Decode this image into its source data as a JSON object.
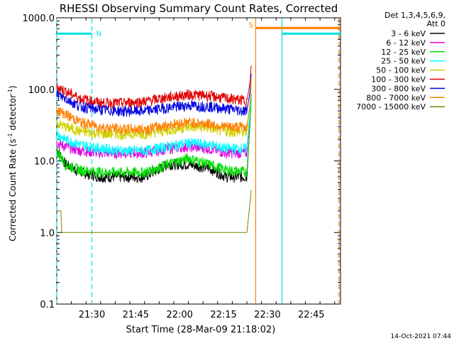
{
  "chart_data": {
    "type": "line",
    "title": "RHESSI Observing Summary Count Rates, Corrected",
    "xlabel": "Start Time (28-Mar-09 21:18:02)",
    "ylabel_main": "Corrected Count Rate (s",
    "ylabel_sup1": "-1",
    "ylabel_mid": " detector",
    "ylabel_sup2": "-1",
    "ylabel_end": ")",
    "yscale": "log",
    "ylim": [
      0.1,
      1000
    ],
    "y_ticks": [
      "0.1",
      "1.0",
      "10.0",
      "100.0",
      "1000.0"
    ],
    "xlim_minutes": [
      0,
      97
    ],
    "x_ticks": [
      {
        "minute": 12,
        "label": "21:30"
      },
      {
        "minute": 27,
        "label": "21:45"
      },
      {
        "minute": 42,
        "label": "22:00"
      },
      {
        "minute": 57,
        "label": "22:15"
      },
      {
        "minute": 72,
        "label": "22:30"
      },
      {
        "minute": 87,
        "label": "22:45"
      }
    ],
    "legend_header": [
      "Det 1,3,4,5,6,9,",
      "Att 0"
    ],
    "legend_placement": "right",
    "grid": false,
    "footer": "14-Oct-2021 07:44",
    "series": [
      {
        "name": "3 - 6 keV",
        "color": "#000000",
        "x": [
          0,
          3,
          8,
          15,
          22,
          30,
          38,
          45,
          52,
          58,
          65,
          66,
          66.5
        ],
        "y": [
          15,
          9,
          7,
          6,
          6,
          6,
          9,
          9,
          8,
          6,
          6,
          30,
          80
        ]
      },
      {
        "name": "6 - 12 keV",
        "color": "#e000e0",
        "x": [
          0,
          3,
          8,
          15,
          22,
          30,
          38,
          45,
          52,
          58,
          65,
          66,
          66.5
        ],
        "y": [
          18,
          16,
          14,
          13,
          13,
          13,
          15,
          16,
          15,
          13,
          13,
          40,
          90
        ]
      },
      {
        "name": "12 - 25 keV",
        "color": "#00e000",
        "x": [
          0,
          3,
          8,
          15,
          22,
          30,
          38,
          45,
          52,
          58,
          65,
          66,
          66.5
        ],
        "y": [
          14,
          9,
          7.5,
          7,
          7,
          7,
          9,
          11,
          9,
          7.5,
          7,
          30,
          80
        ]
      },
      {
        "name": "25 - 50 keV",
        "color": "#00ffff",
        "x": [
          0,
          3,
          8,
          15,
          22,
          30,
          38,
          45,
          52,
          58,
          65,
          66,
          66.5
        ],
        "y": [
          24,
          20,
          17,
          15,
          14,
          14,
          16,
          18,
          17,
          15,
          15,
          45,
          110
        ]
      },
      {
        "name": "50 - 100 keV",
        "color": "#d0d000",
        "x": [
          0,
          3,
          8,
          15,
          22,
          30,
          38,
          45,
          52,
          58,
          65,
          66,
          66.5
        ],
        "y": [
          34,
          30,
          26,
          24,
          24,
          24,
          27,
          30,
          29,
          26,
          25,
          60,
          130
        ]
      },
      {
        "name": "100 - 300 keV",
        "color": "#e00000",
        "x": [
          0,
          3,
          8,
          15,
          22,
          30,
          38,
          45,
          52,
          58,
          65,
          66,
          66.5
        ],
        "y": [
          110,
          95,
          75,
          65,
          65,
          68,
          78,
          85,
          82,
          75,
          70,
          120,
          220
        ]
      },
      {
        "name": "300 - 800 keV",
        "color": "#0000e0",
        "x": [
          0,
          3,
          8,
          15,
          22,
          30,
          38,
          45,
          52,
          58,
          65,
          66,
          66.5
        ],
        "y": [
          85,
          75,
          58,
          52,
          50,
          50,
          56,
          60,
          58,
          54,
          50,
          90,
          170
        ]
      },
      {
        "name": "800 - 7000 keV",
        "color": "#ff8000",
        "x": [
          0,
          3,
          8,
          15,
          22,
          30,
          38,
          45,
          52,
          58,
          65,
          66,
          66.5
        ],
        "y": [
          52,
          45,
          35,
          30,
          28,
          28,
          32,
          35,
          33,
          30,
          30,
          60,
          150
        ]
      },
      {
        "name": "7000 - 15000 keV",
        "color": "#808000",
        "x": [
          0,
          1.5,
          1.6,
          3,
          10,
          12,
          22,
          30,
          42,
          52,
          58,
          65,
          66,
          66.5
        ],
        "y": [
          2,
          2,
          1,
          1,
          1,
          1,
          1,
          1,
          1,
          1,
          1,
          1,
          2.5,
          4
        ]
      }
    ],
    "markers": {
      "night_bar": {
        "color": "#00e0e0",
        "x_start": 0,
        "x_end": 12,
        "level": 600,
        "label": "N"
      },
      "saa_bar": {
        "color": "#ff8000",
        "x_start": 68,
        "x_end": 97,
        "level": 720,
        "label": "S"
      },
      "night_bar2": {
        "color": "#00e0e0",
        "x_start": 77,
        "x_end": 97,
        "level": 600
      },
      "vlines": [
        {
          "minute": 0,
          "color": "#00e0e0",
          "style": "dashed"
        },
        {
          "minute": 12,
          "color": "#00e0e0",
          "style": "dashed"
        },
        {
          "minute": 68,
          "color": "#ff8000",
          "style": "solid"
        },
        {
          "minute": 77,
          "color": "#00e0e0",
          "style": "solid"
        },
        {
          "minute": 96.5,
          "color": "#00e0e0",
          "style": "dashed"
        },
        {
          "minute": 96.5,
          "color": "#ff8000",
          "style": "dashed"
        }
      ]
    }
  }
}
